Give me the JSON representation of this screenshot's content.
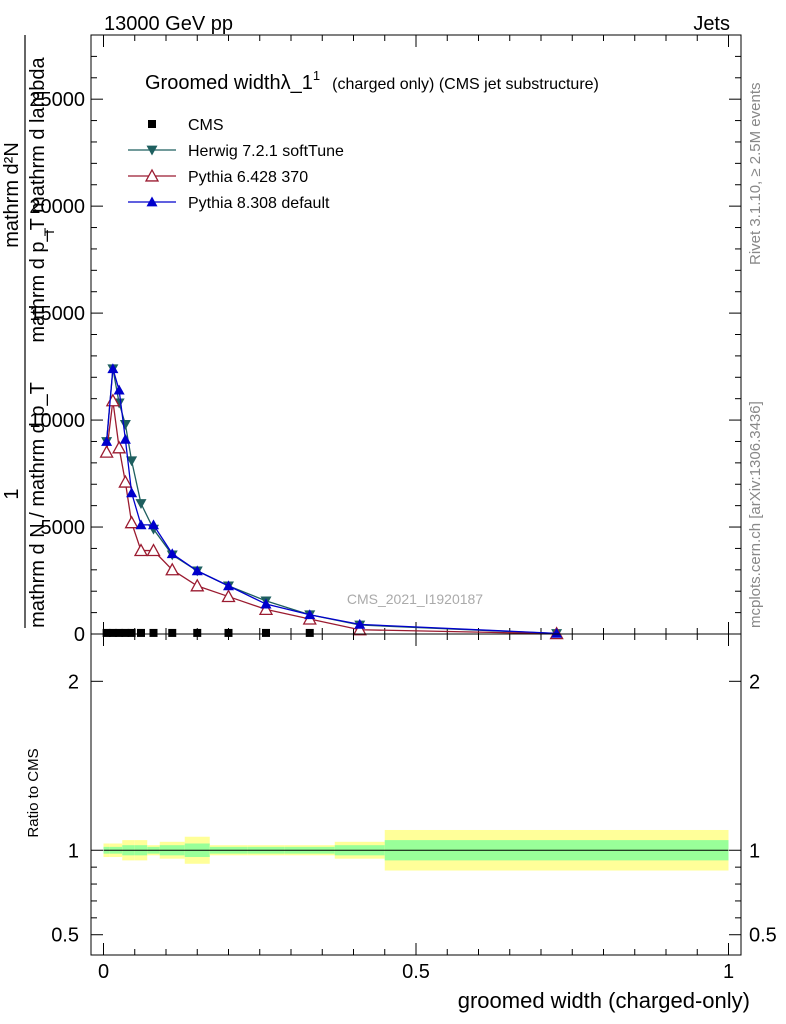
{
  "header": {
    "left": "13000 GeV pp",
    "right": "Jets"
  },
  "side_labels": {
    "rivet": "Rivet 3.1.10, ≥ 2.5M events",
    "mcplots": "mcplots.cern.ch [arXiv:1306.3436]"
  },
  "watermark": "CMS_2021_I1920187",
  "main_ylabel": {
    "prefix": "1",
    "denominator": "mathrm d N / mathrm d p_T",
    "upper_num": "mathrm d²N",
    "upper_den": "mathrm d p_T mathrm d lambda",
    "upper_den_sub": "T"
  },
  "ratio_ylabel": "Ratio to CMS",
  "chart_data": [
    {
      "type": "line",
      "title_main": "Groomed width",
      "title_sym": "λ_1",
      "title_sup": "1",
      "title_rest": "(charged only) (CMS jet substructure)",
      "xlabel": "groomed width (charged-only)",
      "xlim": [
        -0.02,
        1.02
      ],
      "ylim": [
        0,
        28000
      ],
      "x_ticks": [
        "0",
        "0.5",
        "1"
      ],
      "y_ticks": [
        "0",
        "5000",
        "10000",
        "15000",
        "20000",
        "25000"
      ],
      "legend_position": "top-left",
      "series": [
        {
          "name": "CMS",
          "color": "#000000",
          "marker": "square",
          "x": [
            0.005,
            0.015,
            0.025,
            0.035,
            0.045,
            0.06,
            0.08,
            0.11,
            0.15,
            0.2,
            0.26,
            0.33
          ],
          "y": [
            50,
            50,
            50,
            50,
            50,
            50,
            50,
            50,
            50,
            50,
            50,
            50
          ]
        },
        {
          "name": "Herwig 7.2.1 softTune",
          "color": "#1e5f5f",
          "marker": "triangle-down",
          "x": [
            0.005,
            0.015,
            0.025,
            0.035,
            0.045,
            0.06,
            0.08,
            0.11,
            0.15,
            0.2,
            0.26,
            0.33,
            0.41,
            0.725
          ],
          "y": [
            9000,
            12400,
            10800,
            9800,
            8100,
            6100,
            4900,
            3700,
            2950,
            2250,
            1550,
            900,
            420,
            25
          ]
        },
        {
          "name": "Pythia 6.428 370",
          "color": "#9b1b30",
          "marker": "triangle-up-open",
          "x": [
            0.005,
            0.015,
            0.025,
            0.035,
            0.045,
            0.06,
            0.08,
            0.11,
            0.15,
            0.2,
            0.26,
            0.33,
            0.41,
            0.725
          ],
          "y": [
            8500,
            10900,
            8700,
            7100,
            5200,
            3900,
            3900,
            3000,
            2250,
            1750,
            1150,
            700,
            200,
            15
          ]
        },
        {
          "name": "Pythia 8.308 default",
          "color": "#0000cc",
          "marker": "triangle-up",
          "x": [
            0.005,
            0.015,
            0.025,
            0.035,
            0.045,
            0.06,
            0.08,
            0.11,
            0.15,
            0.2,
            0.26,
            0.33,
            0.41,
            0.725
          ],
          "y": [
            9000,
            12400,
            11400,
            9100,
            6600,
            5100,
            5100,
            3750,
            2950,
            2250,
            1400,
            900,
            450,
            30
          ]
        }
      ]
    },
    {
      "type": "area",
      "ylabel": "Ratio to CMS",
      "ylim": [
        0.38,
        2.28
      ],
      "y_ticks": [
        "0.5",
        "1",
        "2"
      ],
      "reference_line": 1,
      "bands": {
        "edges": [
          0.0,
          0.01,
          0.02,
          0.03,
          0.04,
          0.05,
          0.07,
          0.09,
          0.13,
          0.17,
          0.23,
          0.29,
          0.37,
          0.45,
          1.0
        ],
        "inner_color": "#99ff99",
        "outer_color": "#ffff99",
        "inner": [
          [
            0.98,
            1.02
          ],
          [
            0.98,
            1.02
          ],
          [
            0.98,
            1.02
          ],
          [
            0.97,
            1.03
          ],
          [
            0.97,
            1.03
          ],
          [
            0.97,
            1.03
          ],
          [
            0.98,
            1.02
          ],
          [
            0.97,
            1.03
          ],
          [
            0.96,
            1.04
          ],
          [
            0.98,
            1.02
          ],
          [
            0.98,
            1.02
          ],
          [
            0.98,
            1.02
          ],
          [
            0.97,
            1.03
          ],
          [
            0.94,
            1.06
          ]
        ],
        "outer": [
          [
            0.96,
            1.04
          ],
          [
            0.96,
            1.04
          ],
          [
            0.96,
            1.04
          ],
          [
            0.94,
            1.06
          ],
          [
            0.94,
            1.06
          ],
          [
            0.94,
            1.06
          ],
          [
            0.97,
            1.03
          ],
          [
            0.95,
            1.05
          ],
          [
            0.92,
            1.08
          ],
          [
            0.97,
            1.03
          ],
          [
            0.97,
            1.03
          ],
          [
            0.97,
            1.03
          ],
          [
            0.95,
            1.05
          ],
          [
            0.88,
            1.12
          ]
        ]
      }
    }
  ]
}
